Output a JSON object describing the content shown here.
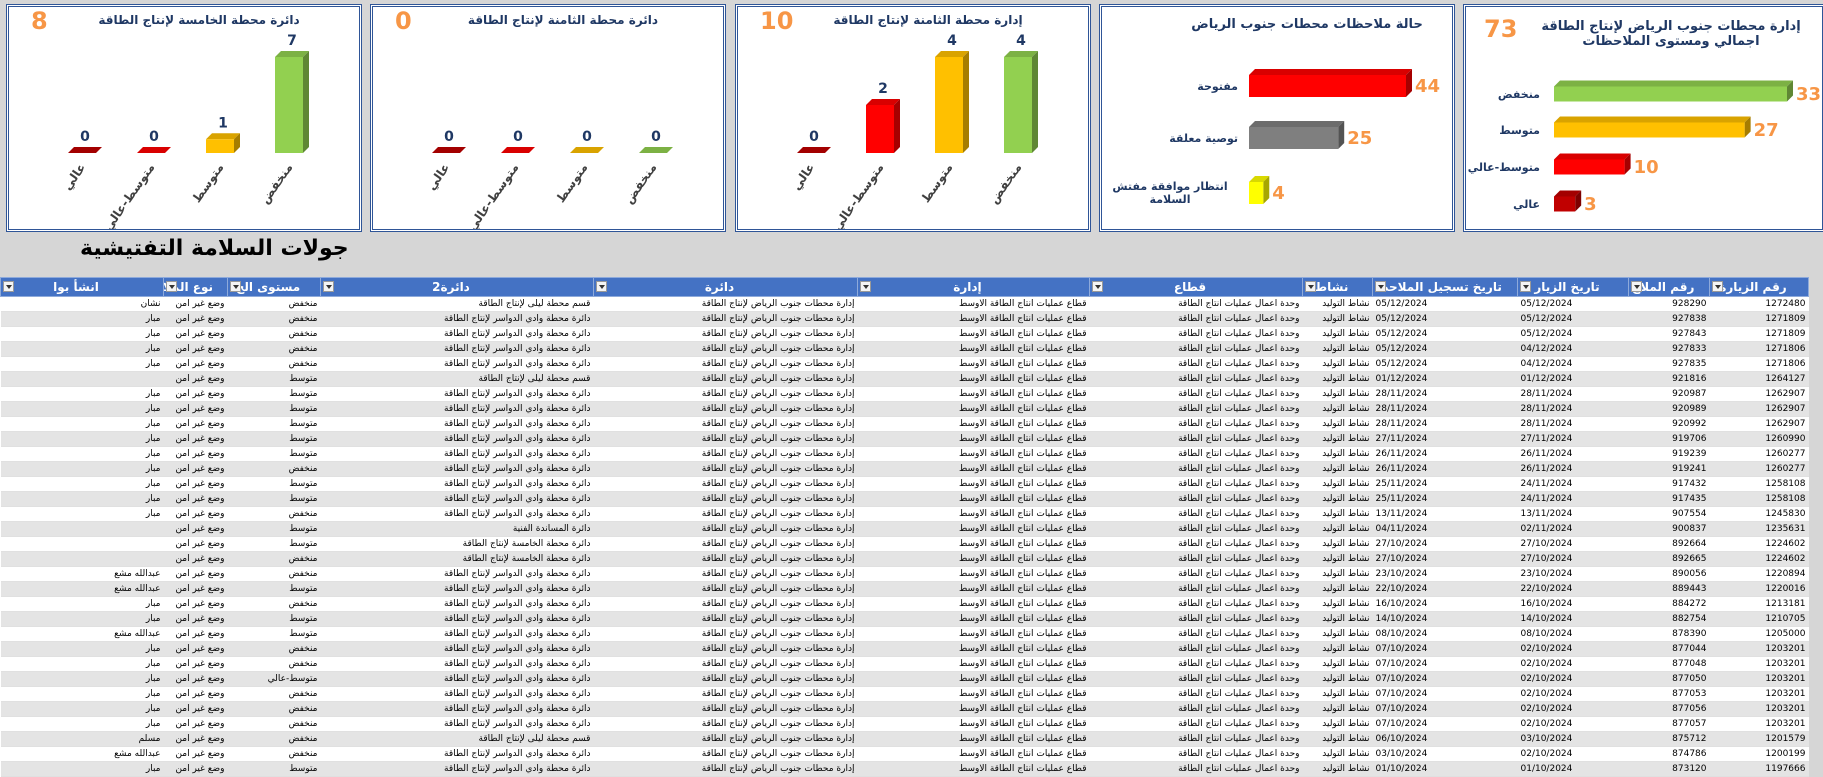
{
  "heading": "جولات السلامة التفتيشية",
  "chart_data": [
    {
      "type": "bar",
      "horizontal": true,
      "title": "إدارة محطات جنوب الرياض لإنتاج الطاقة اجمالي ومستوى الملاحظات",
      "total": 73,
      "categories": [
        "منخفض",
        "متوسط",
        "متوسط-عالي",
        "عالي"
      ],
      "values": [
        33,
        27,
        10,
        3
      ],
      "colors": [
        "#92d050",
        "#ffc000",
        "#ff0000",
        "#c00000"
      ]
    },
    {
      "type": "bar",
      "horizontal": true,
      "title": "حالة ملاحظات محطات جنوب الرياض",
      "categories": [
        "مفتوحة",
        "توصية معلقة",
        "انتظار موافقة مفتش السلامة"
      ],
      "values": [
        44,
        25,
        4
      ],
      "colors": [
        "#ff0000",
        "#7f7f7f",
        "#ffff00"
      ]
    },
    {
      "type": "bar",
      "title": "إدارة محطة الثامنة لإنتاج الطاقة",
      "total": 10,
      "categories": [
        "عالي",
        "متوسط-عالي",
        "متوسط",
        "منخفض"
      ],
      "values": [
        0,
        2,
        4,
        4
      ],
      "colors": [
        "#c00000",
        "#ff0000",
        "#ffc000",
        "#92d050"
      ]
    },
    {
      "type": "bar",
      "title": "دائرة محطة الثامنة لإنتاج الطاقة",
      "total": 0,
      "categories": [
        "عالي",
        "متوسط-عالي",
        "متوسط",
        "منخفض"
      ],
      "values": [
        0,
        0,
        0,
        0
      ],
      "colors": [
        "#c00000",
        "#ff0000",
        "#ffc000",
        "#92d050"
      ]
    },
    {
      "type": "bar",
      "title": "دائرة محطة الخامسة لإنتاج الطاقة",
      "total": 8,
      "categories": [
        "عالي",
        "متوسط-عالي",
        "متوسط",
        "منخفض"
      ],
      "values": [
        0,
        0,
        1,
        7
      ],
      "colors": [
        "#c00000",
        "#ff0000",
        "#ffc000",
        "#92d050"
      ]
    }
  ],
  "table": {
    "columns": [
      "رقم الزيارة",
      "رقم الملاح",
      "تاريخ الزيار",
      "تاريخ تسجيل الملاحظ",
      "نشاط",
      "قطاع",
      "إدارة",
      "دائرة",
      "دائرة2",
      "مستوى الخ",
      "نوع الملاح",
      "انشأ بوا"
    ],
    "rows": [
      [
        "1272480",
        "928290",
        "05/12/2024",
        "05/12/2024",
        "نشاط التوليد",
        "وحدة اعمال عمليات انتاج الطاقة",
        "قطاع عمليات انتاج الطاقة الاوسط",
        "إدارة محطات جنوب الرياض لإنتاج الطاقة",
        "قسم محطة ليلى لإنتاج الطاقة",
        "منخفض",
        "وضع غير امن",
        "نشان"
      ],
      [
        "1271809",
        "927838",
        "05/12/2024",
        "05/12/2024",
        "نشاط التوليد",
        "وحدة اعمال عمليات انتاج الطاقة",
        "قطاع عمليات انتاج الطاقة الاوسط",
        "إدارة محطات جنوب الرياض لإنتاج الطاقة",
        "دائرة محطة وادي الدواسر لإنتاج الطاقة",
        "منخفض",
        "وضع غير امن",
        "مبار"
      ],
      [
        "1271809",
        "927843",
        "05/12/2024",
        "05/12/2024",
        "نشاط التوليد",
        "وحدة اعمال عمليات انتاج الطاقة",
        "قطاع عمليات انتاج الطاقة الاوسط",
        "إدارة محطات جنوب الرياض لإنتاج الطاقة",
        "دائرة محطة وادي الدواسر لإنتاج الطاقة",
        "منخفض",
        "وضع غير امن",
        "مبار"
      ],
      [
        "1271806",
        "927833",
        "04/12/2024",
        "05/12/2024",
        "نشاط التوليد",
        "وحدة اعمال عمليات انتاج الطاقة",
        "قطاع عمليات انتاج الطاقة الاوسط",
        "إدارة محطات جنوب الرياض لإنتاج الطاقة",
        "دائرة محطة وادي الدواسر لإنتاج الطاقة",
        "منخفض",
        "وضع غير امن",
        "مبار"
      ],
      [
        "1271806",
        "927835",
        "04/12/2024",
        "05/12/2024",
        "نشاط التوليد",
        "وحدة اعمال عمليات انتاج الطاقة",
        "قطاع عمليات انتاج الطاقة الاوسط",
        "إدارة محطات جنوب الرياض لإنتاج الطاقة",
        "دائرة محطة وادي الدواسر لإنتاج الطاقة",
        "منخفض",
        "وضع غير امن",
        "مبار"
      ],
      [
        "1264127",
        "921816",
        "01/12/2024",
        "01/12/2024",
        "نشاط التوليد",
        "وحدة اعمال عمليات انتاج الطاقة",
        "قطاع عمليات انتاج الطاقة الاوسط",
        "إدارة محطات جنوب الرياض لإنتاج الطاقة",
        "قسم محطة ليلى لإنتاج الطاقة",
        "متوسط",
        "وضع غير امن",
        null
      ],
      [
        "1262907",
        "920987",
        "28/11/2024",
        "28/11/2024",
        "نشاط التوليد",
        "وحدة اعمال عمليات انتاج الطاقة",
        "قطاع عمليات انتاج الطاقة الاوسط",
        "إدارة محطات جنوب الرياض لإنتاج الطاقة",
        "دائرة محطة وادي الدواسر لإنتاج الطاقة",
        "متوسط",
        "وضع غير امن",
        "مبار"
      ],
      [
        "1262907",
        "920989",
        "28/11/2024",
        "28/11/2024",
        "نشاط التوليد",
        "وحدة اعمال عمليات انتاج الطاقة",
        "قطاع عمليات انتاج الطاقة الاوسط",
        "إدارة محطات جنوب الرياض لإنتاج الطاقة",
        "دائرة محطة وادي الدواسر لإنتاج الطاقة",
        "متوسط",
        "وضع غير امن",
        "مبار"
      ],
      [
        "1262907",
        "920992",
        "28/11/2024",
        "28/11/2024",
        "نشاط التوليد",
        "وحدة اعمال عمليات انتاج الطاقة",
        "قطاع عمليات انتاج الطاقة الاوسط",
        "إدارة محطات جنوب الرياض لإنتاج الطاقة",
        "دائرة محطة وادي الدواسر لإنتاج الطاقة",
        "متوسط",
        "وضع غير امن",
        "مبار"
      ],
      [
        "1260990",
        "919706",
        "27/11/2024",
        "27/11/2024",
        "نشاط التوليد",
        "وحدة اعمال عمليات انتاج الطاقة",
        "قطاع عمليات انتاج الطاقة الاوسط",
        "إدارة محطات جنوب الرياض لإنتاج الطاقة",
        "دائرة محطة وادي الدواسر لإنتاج الطاقة",
        "متوسط",
        "وضع غير امن",
        "مبار"
      ],
      [
        "1260277",
        "919239",
        "26/11/2024",
        "26/11/2024",
        "نشاط التوليد",
        "وحدة اعمال عمليات انتاج الطاقة",
        "قطاع عمليات انتاج الطاقة الاوسط",
        "إدارة محطات جنوب الرياض لإنتاج الطاقة",
        "دائرة محطة وادي الدواسر لإنتاج الطاقة",
        "متوسط",
        "وضع غير امن",
        "مبار"
      ],
      [
        "1260277",
        "919241",
        "26/11/2024",
        "26/11/2024",
        "نشاط التوليد",
        "وحدة اعمال عمليات انتاج الطاقة",
        "قطاع عمليات انتاج الطاقة الاوسط",
        "إدارة محطات جنوب الرياض لإنتاج الطاقة",
        "دائرة محطة وادي الدواسر لإنتاج الطاقة",
        "منخفض",
        "وضع غير امن",
        "مبار"
      ],
      [
        "1258108",
        "917432",
        "24/11/2024",
        "25/11/2024",
        "نشاط التوليد",
        "وحدة اعمال عمليات انتاج الطاقة",
        "قطاع عمليات انتاج الطاقة الاوسط",
        "إدارة محطات جنوب الرياض لإنتاج الطاقة",
        "دائرة محطة وادي الدواسر لإنتاج الطاقة",
        "متوسط",
        "وضع غير امن",
        "مبار"
      ],
      [
        "1258108",
        "917435",
        "24/11/2024",
        "25/11/2024",
        "نشاط التوليد",
        "وحدة اعمال عمليات انتاج الطاقة",
        "قطاع عمليات انتاج الطاقة الاوسط",
        "إدارة محطات جنوب الرياض لإنتاج الطاقة",
        "دائرة محطة وادي الدواسر لإنتاج الطاقة",
        "متوسط",
        "وضع غير امن",
        "مبار"
      ],
      [
        "1245830",
        "907554",
        "13/11/2024",
        "13/11/2024",
        "نشاط التوليد",
        "وحدة اعمال عمليات انتاج الطاقة",
        "قطاع عمليات انتاج الطاقة الاوسط",
        "إدارة محطات جنوب الرياض لإنتاج الطاقة",
        "دائرة محطة وادي الدواسر لإنتاج الطاقة",
        "منخفض",
        "وضع غير امن",
        "مبار"
      ],
      [
        "1235631",
        "900837",
        "02/11/2024",
        "04/11/2024",
        "نشاط التوليد",
        "وحدة اعمال عمليات انتاج الطاقة",
        "قطاع عمليات انتاج الطاقة الاوسط",
        "إدارة محطات جنوب الرياض لإنتاج الطاقة",
        "دائرة المساندة الفنية",
        "متوسط",
        "وضع غير امن",
        null
      ],
      [
        "1224602",
        "892664",
        "27/10/2024",
        "27/10/2024",
        "نشاط التوليد",
        "وحدة اعمال عمليات انتاج الطاقة",
        "قطاع عمليات انتاج الطاقة الاوسط",
        "إدارة محطات جنوب الرياض لإنتاج الطاقة",
        "دائرة محطة الخامسة لإنتاج الطاقة",
        "متوسط",
        "وضع غير امن",
        null
      ],
      [
        "1224602",
        "892665",
        "27/10/2024",
        "27/10/2024",
        "نشاط التوليد",
        "وحدة اعمال عمليات انتاج الطاقة",
        "قطاع عمليات انتاج الطاقة الاوسط",
        "إدارة محطات جنوب الرياض لإنتاج الطاقة",
        "دائرة محطة الخامسة لإنتاج الطاقة",
        "منخفض",
        "وضع غير امن",
        null
      ],
      [
        "1220894",
        "890056",
        "23/10/2024",
        "23/10/2024",
        "نشاط التوليد",
        "وحدة اعمال عمليات انتاج الطاقة",
        "قطاع عمليات انتاج الطاقة الاوسط",
        "إدارة محطات جنوب الرياض لإنتاج الطاقة",
        "دائرة محطة وادي الدواسر لإنتاج الطاقة",
        "منخفض",
        "وضع غير امن",
        "عبدالله مشع"
      ],
      [
        "1220016",
        "889443",
        "22/10/2024",
        "22/10/2024",
        "نشاط التوليد",
        "وحدة اعمال عمليات انتاج الطاقة",
        "قطاع عمليات انتاج الطاقة الاوسط",
        "إدارة محطات جنوب الرياض لإنتاج الطاقة",
        "دائرة محطة وادي الدواسر لإنتاج الطاقة",
        "متوسط",
        "وضع غير امن",
        "عبدالله مشع"
      ],
      [
        "1213181",
        "884272",
        "16/10/2024",
        "16/10/2024",
        "نشاط التوليد",
        "وحدة اعمال عمليات انتاج الطاقة",
        "قطاع عمليات انتاج الطاقة الاوسط",
        "إدارة محطات جنوب الرياض لإنتاج الطاقة",
        "دائرة محطة وادي الدواسر لإنتاج الطاقة",
        "منخفض",
        "وضع غير امن",
        "مبار"
      ],
      [
        "1210705",
        "882754",
        "14/10/2024",
        "14/10/2024",
        "نشاط التوليد",
        "وحدة اعمال عمليات انتاج الطاقة",
        "قطاع عمليات انتاج الطاقة الاوسط",
        "إدارة محطات جنوب الرياض لإنتاج الطاقة",
        "دائرة محطة وادي الدواسر لإنتاج الطاقة",
        "متوسط",
        "وضع غير امن",
        "مبار"
      ],
      [
        "1205000",
        "878390",
        "08/10/2024",
        "08/10/2024",
        "نشاط التوليد",
        "وحدة اعمال عمليات انتاج الطاقة",
        "قطاع عمليات انتاج الطاقة الاوسط",
        "إدارة محطات جنوب الرياض لإنتاج الطاقة",
        "دائرة محطة وادي الدواسر لإنتاج الطاقة",
        "متوسط",
        "وضع غير امن",
        "عبدالله مشع"
      ],
      [
        "1203201",
        "877044",
        "02/10/2024",
        "07/10/2024",
        "نشاط التوليد",
        "وحدة اعمال عمليات انتاج الطاقة",
        "قطاع عمليات انتاج الطاقة الاوسط",
        "إدارة محطات جنوب الرياض لإنتاج الطاقة",
        "دائرة محطة وادي الدواسر لإنتاج الطاقة",
        "منخفض",
        "وضع غير امن",
        "مبار"
      ],
      [
        "1203201",
        "877048",
        "02/10/2024",
        "07/10/2024",
        "نشاط التوليد",
        "وحدة اعمال عمليات انتاج الطاقة",
        "قطاع عمليات انتاج الطاقة الاوسط",
        "إدارة محطات جنوب الرياض لإنتاج الطاقة",
        "دائرة محطة وادي الدواسر لإنتاج الطاقة",
        "منخفض",
        "وضع غير امن",
        "مبار"
      ],
      [
        "1203201",
        "877050",
        "02/10/2024",
        "07/10/2024",
        "نشاط التوليد",
        "وحدة اعمال عمليات انتاج الطاقة",
        "قطاع عمليات انتاج الطاقة الاوسط",
        "إدارة محطات جنوب الرياض لإنتاج الطاقة",
        "دائرة محطة وادي الدواسر لإنتاج الطاقة",
        "متوسط-عالي",
        "وضع غير امن",
        "مبار"
      ],
      [
        "1203201",
        "877053",
        "02/10/2024",
        "07/10/2024",
        "نشاط التوليد",
        "وحدة اعمال عمليات انتاج الطاقة",
        "قطاع عمليات انتاج الطاقة الاوسط",
        "إدارة محطات جنوب الرياض لإنتاج الطاقة",
        "دائرة محطة وادي الدواسر لإنتاج الطاقة",
        "منخفض",
        "وضع غير امن",
        "مبار"
      ],
      [
        "1203201",
        "877056",
        "02/10/2024",
        "07/10/2024",
        "نشاط التوليد",
        "وحدة اعمال عمليات انتاج الطاقة",
        "قطاع عمليات انتاج الطاقة الاوسط",
        "إدارة محطات جنوب الرياض لإنتاج الطاقة",
        "دائرة محطة وادي الدواسر لإنتاج الطاقة",
        "منخفض",
        "وضع غير امن",
        "مبار"
      ],
      [
        "1203201",
        "877057",
        "02/10/2024",
        "07/10/2024",
        "نشاط التوليد",
        "وحدة اعمال عمليات انتاج الطاقة",
        "قطاع عمليات انتاج الطاقة الاوسط",
        "إدارة محطات جنوب الرياض لإنتاج الطاقة",
        "دائرة محطة وادي الدواسر لإنتاج الطاقة",
        "منخفض",
        "وضع غير امن",
        "مبار"
      ],
      [
        "1201579",
        "875712",
        "03/10/2024",
        "06/10/2024",
        "نشاط التوليد",
        "وحدة اعمال عمليات انتاج الطاقة",
        "قطاع عمليات انتاج الطاقة الاوسط",
        "إدارة محطات جنوب الرياض لإنتاج الطاقة",
        "قسم محطة ليلى لإنتاج الطاقة",
        "منخفض",
        "وضع غير امن",
        "مسلم"
      ],
      [
        "1200199",
        "874786",
        "02/10/2024",
        "03/10/2024",
        "نشاط التوليد",
        "وحدة اعمال عمليات انتاج الطاقة",
        "قطاع عمليات انتاج الطاقة الاوسط",
        "إدارة محطات جنوب الرياض لإنتاج الطاقة",
        "دائرة محطة وادي الدواسر لإنتاج الطاقة",
        "منخفض",
        "وضع غير امن",
        "عبدالله مشع"
      ],
      [
        "1197666",
        "873120",
        "01/10/2024",
        "01/10/2024",
        "نشاط التوليد",
        "وحدة اعمال عمليات انتاج الطاقة",
        "قطاع عمليات انتاج الطاقة الاوسط",
        "إدارة محطات جنوب الرياض لإنتاج الطاقة",
        "دائرة محطة وادي الدواسر لإنتاج الطاقة",
        "متوسط",
        "وضع غير امن",
        "مبار"
      ]
    ]
  }
}
